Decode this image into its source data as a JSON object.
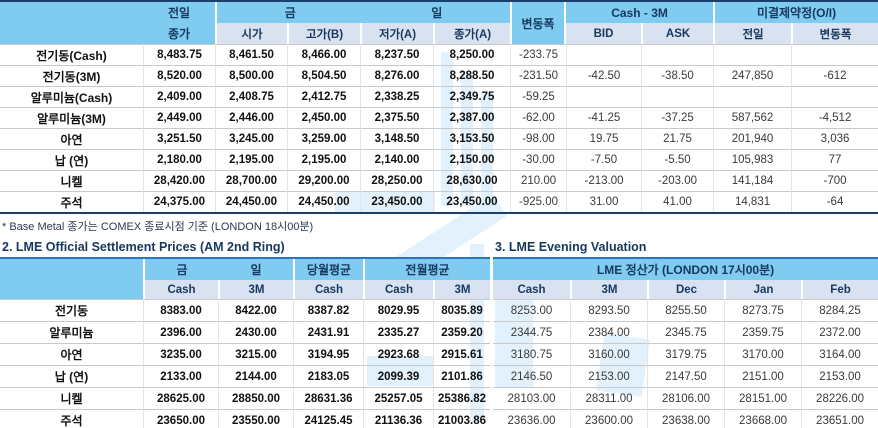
{
  "colors": {
    "header_cyan": "#7fccf0",
    "header_light": "#d9e2f0",
    "heading_navy": "#17375e",
    "table1_border": "#1a3e6e",
    "table23_border": "#2e75b6",
    "watermark_blue": "#d2eaf9"
  },
  "table1": {
    "header": {
      "prev_top": "전일",
      "prev_bottom": "종가",
      "today_left": "금",
      "today_right": "일",
      "sub_today": [
        "시가",
        "고가(B)",
        "저가(A)",
        "종가(A)"
      ],
      "change": "변동폭",
      "cash_3m": "Cash - 3M",
      "sub_cash3m": [
        "BID",
        "ASK"
      ],
      "oi": "미결제약정(O/I)",
      "sub_oi": [
        "전일",
        "변동폭"
      ]
    },
    "rows": [
      {
        "label": "전기동(Cash)",
        "values": [
          "8,483.75",
          "8,461.50",
          "8,466.00",
          "8,237.50",
          "8,250.00",
          "-233.75",
          "",
          "",
          "",
          ""
        ]
      },
      {
        "label": "전기동(3M)",
        "values": [
          "8,520.00",
          "8,500.00",
          "8,504.50",
          "8,276.00",
          "8,288.50",
          "-231.50",
          "-42.50",
          "-38.50",
          "247,850",
          "-612"
        ]
      },
      {
        "label": "알루미늄(Cash)",
        "values": [
          "2,409.00",
          "2,408.75",
          "2,412.75",
          "2,338.25",
          "2,349.75",
          "-59.25",
          "",
          "",
          "",
          ""
        ]
      },
      {
        "label": "알루미늄(3M)",
        "values": [
          "2,449.00",
          "2,446.00",
          "2,450.00",
          "2,375.50",
          "2,387.00",
          "-62.00",
          "-41.25",
          "-37.25",
          "587,562",
          "-4,512"
        ]
      },
      {
        "label": "아연",
        "values": [
          "3,251.50",
          "3,245.00",
          "3,259.00",
          "3,148.50",
          "3,153.50",
          "-98.00",
          "19.75",
          "21.75",
          "201,940",
          "3,036"
        ]
      },
      {
        "label": "납 (연)",
        "values": [
          "2,180.00",
          "2,195.00",
          "2,195.00",
          "2,140.00",
          "2,150.00",
          "-30.00",
          "-7.50",
          "-5.50",
          "105,983",
          "77"
        ]
      },
      {
        "label": "니켈",
        "values": [
          "28,420.00",
          "28,700.00",
          "29,200.00",
          "28,250.00",
          "28,630.00",
          "210.00",
          "-213.00",
          "-203.00",
          "141,184",
          "-700"
        ]
      },
      {
        "label": "주석",
        "values": [
          "24,375.00",
          "24,450.00",
          "24,450.00",
          "23,450.00",
          "23,450.00",
          "-925.00",
          "31.00",
          "41.00",
          "14,831",
          "-64"
        ]
      }
    ],
    "footnote": "* Base Metal 종가는 COMEX 종료시점 기준 (LONDON 18시00분)"
  },
  "table2": {
    "title": "2. LME Official Settlement Prices (AM 2nd Ring)",
    "header": {
      "today_left": "금",
      "today_right": "일",
      "month_avg": "당월평균",
      "prev_month_avg": "전월평균",
      "sub": [
        "Cash",
        "3M",
        "Cash",
        "Cash",
        "3M"
      ]
    },
    "rows": [
      {
        "label": "전기동",
        "values": [
          "8383.00",
          "8422.00",
          "8387.82",
          "8029.95",
          "8035.89"
        ]
      },
      {
        "label": "알루미늄",
        "values": [
          "2396.00",
          "2430.00",
          "2431.91",
          "2335.27",
          "2359.20"
        ]
      },
      {
        "label": "아연",
        "values": [
          "3235.00",
          "3215.00",
          "3194.95",
          "2923.68",
          "2915.61"
        ]
      },
      {
        "label": "납 (연)",
        "values": [
          "2133.00",
          "2144.00",
          "2183.05",
          "2099.39",
          "2101.86"
        ]
      },
      {
        "label": "니켈",
        "values": [
          "28625.00",
          "28850.00",
          "28631.36",
          "25257.05",
          "25386.82"
        ]
      },
      {
        "label": "주석",
        "values": [
          "23650.00",
          "23550.00",
          "24125.45",
          "21136.36",
          "21003.86"
        ]
      }
    ]
  },
  "table3": {
    "title": "3. LME Evening Valuation",
    "header": {
      "main": "LME 정산가 (LONDON 17시00분)",
      "sub": [
        "Cash",
        "3M",
        "Dec",
        "Jan",
        "Feb"
      ]
    },
    "rows": [
      {
        "values": [
          "8253.00",
          "8293.50",
          "8255.50",
          "8273.75",
          "8284.25"
        ]
      },
      {
        "values": [
          "2344.75",
          "2384.00",
          "2345.75",
          "2359.75",
          "2372.00"
        ]
      },
      {
        "values": [
          "3180.75",
          "3160.00",
          "3179.75",
          "3170.00",
          "3164.00"
        ]
      },
      {
        "values": [
          "2146.50",
          "2153.00",
          "2147.50",
          "2151.00",
          "2153.00"
        ]
      },
      {
        "values": [
          "28103.00",
          "28311.00",
          "28106.00",
          "28151.00",
          "28226.00"
        ]
      },
      {
        "values": [
          "23636.00",
          "23600.00",
          "23638.00",
          "23668.00",
          "23651.00"
        ]
      }
    ]
  }
}
